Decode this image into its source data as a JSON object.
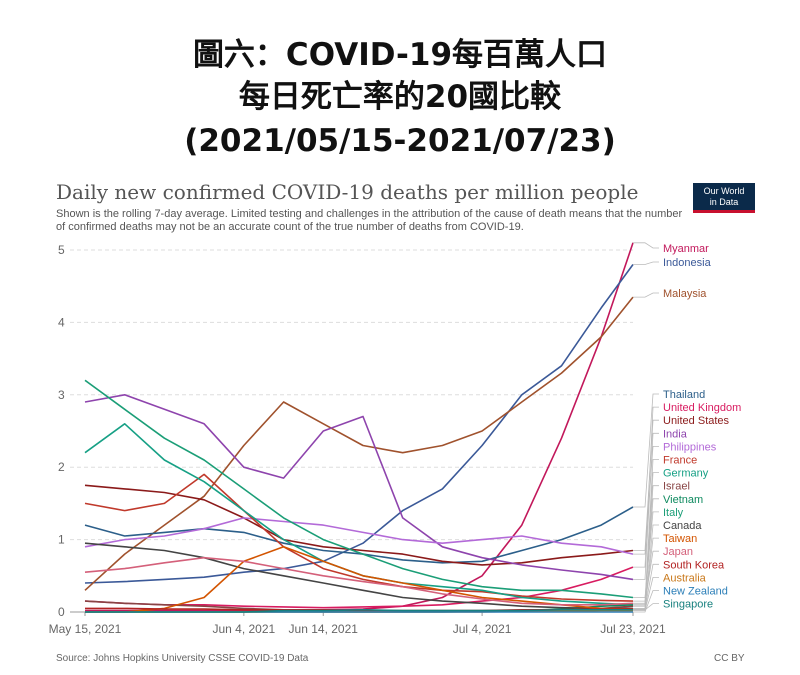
{
  "header": {
    "line1": "圖六：COVID-19每百萬人口",
    "line2": "每日死亡率的20國比較",
    "line3": "(2021/05/15-2021/07/23)"
  },
  "logo": {
    "line1": "Our World",
    "line2": "in Data"
  },
  "footer": {
    "source": "Source: Johns Hopkins University CSSE COVID-19 Data",
    "license": "CC BY"
  },
  "chart_data": {
    "type": "line",
    "title": "Daily new confirmed COVID-19 deaths per million people",
    "subtitle": "Shown is the rolling 7-day average. Limited testing and challenges in the attribution of the cause of death means that the number of confirmed deaths may not be an accurate count of the true number of deaths from COVID-19.",
    "x": [
      0,
      5,
      10,
      15,
      20,
      25,
      30,
      35,
      40,
      45,
      50,
      55,
      60,
      65,
      69
    ],
    "x_tick_labels": [
      "May 15, 2021",
      "Jun 4, 2021",
      "Jun 14, 2021",
      "Jul 4, 2021",
      "Jul 23, 2021"
    ],
    "x_tick_positions": [
      0,
      20,
      30,
      50,
      69
    ],
    "y_ticks": [
      0,
      1,
      2,
      3,
      4,
      5
    ],
    "ylim": [
      0,
      5
    ],
    "grid": "horizontal dashed",
    "legend": "right, labels at line ends",
    "series": [
      {
        "name": "Myanmar",
        "color": "#c2185b",
        "values": [
          0.02,
          0.02,
          0.02,
          0.02,
          0.02,
          0.02,
          0.03,
          0.04,
          0.08,
          0.2,
          0.5,
          1.2,
          2.4,
          3.8,
          5.1
        ]
      },
      {
        "name": "Indonesia",
        "color": "#3b5998",
        "values": [
          0.4,
          0.42,
          0.45,
          0.48,
          0.55,
          0.6,
          0.7,
          0.95,
          1.4,
          1.7,
          2.3,
          3.0,
          3.4,
          4.2,
          4.8
        ]
      },
      {
        "name": "Malaysia",
        "color": "#a0522d",
        "values": [
          0.3,
          0.8,
          1.2,
          1.6,
          2.3,
          2.9,
          2.6,
          2.3,
          2.2,
          2.3,
          2.5,
          2.9,
          3.3,
          3.8,
          4.35
        ]
      },
      {
        "name": "Thailand",
        "color": "#2c5f8a",
        "values": [
          1.2,
          1.05,
          1.1,
          1.15,
          1.1,
          0.95,
          0.85,
          0.8,
          0.72,
          0.68,
          0.7,
          0.85,
          1.0,
          1.2,
          1.45
        ]
      },
      {
        "name": "United Kingdom",
        "color": "#d81b60",
        "values": [
          0.15,
          0.12,
          0.1,
          0.1,
          0.08,
          0.07,
          0.06,
          0.07,
          0.08,
          0.1,
          0.15,
          0.2,
          0.3,
          0.45,
          0.62
        ]
      },
      {
        "name": "United States",
        "color": "#8b1a1a",
        "values": [
          1.75,
          1.7,
          1.65,
          1.55,
          1.3,
          1.0,
          0.9,
          0.85,
          0.8,
          0.7,
          0.65,
          0.68,
          0.75,
          0.8,
          0.85
        ]
      },
      {
        "name": "India",
        "color": "#8e44ad",
        "values": [
          2.9,
          3.0,
          2.8,
          2.6,
          2.0,
          1.85,
          2.5,
          2.7,
          1.3,
          0.9,
          0.75,
          0.65,
          0.58,
          0.52,
          0.45
        ]
      },
      {
        "name": "Philippines",
        "color": "#b36ad8",
        "values": [
          0.9,
          1.0,
          1.05,
          1.15,
          1.3,
          1.25,
          1.2,
          1.1,
          1.0,
          0.95,
          1.0,
          1.05,
          0.95,
          0.9,
          0.8
        ]
      },
      {
        "name": "France",
        "color": "#c0392b",
        "values": [
          1.5,
          1.4,
          1.5,
          1.9,
          1.4,
          0.9,
          0.6,
          0.45,
          0.35,
          0.3,
          0.28,
          0.22,
          0.18,
          0.16,
          0.15
        ]
      },
      {
        "name": "Germany",
        "color": "#16a085",
        "values": [
          2.2,
          2.6,
          2.1,
          1.8,
          1.4,
          1.0,
          0.7,
          0.5,
          0.4,
          0.35,
          0.3,
          0.2,
          0.15,
          0.12,
          0.1
        ]
      },
      {
        "name": "Israel",
        "color": "#884444",
        "values": [
          0.15,
          0.12,
          0.1,
          0.08,
          0.05,
          0.03,
          0.02,
          0.01,
          0.01,
          0.01,
          0.01,
          0.01,
          0.02,
          0.05,
          0.08
        ]
      },
      {
        "name": "Vietnam",
        "color": "#0e8a5f",
        "values": [
          0.0,
          0.0,
          0.0,
          0.0,
          0.0,
          0.0,
          0.0,
          0.0,
          0.0,
          0.0,
          0.01,
          0.02,
          0.04,
          0.08,
          0.1
        ]
      },
      {
        "name": "Italy",
        "color": "#1b9e77",
        "values": [
          3.2,
          2.8,
          2.4,
          2.1,
          1.7,
          1.3,
          1.0,
          0.8,
          0.6,
          0.45,
          0.35,
          0.3,
          0.3,
          0.25,
          0.2
        ]
      },
      {
        "name": "Canada",
        "color": "#444444",
        "values": [
          0.95,
          0.9,
          0.85,
          0.75,
          0.6,
          0.5,
          0.4,
          0.3,
          0.2,
          0.15,
          0.12,
          0.08,
          0.06,
          0.05,
          0.05
        ]
      },
      {
        "name": "Taiwan",
        "color": "#d35400",
        "values": [
          0.0,
          0.0,
          0.05,
          0.2,
          0.7,
          0.9,
          0.7,
          0.5,
          0.4,
          0.3,
          0.2,
          0.15,
          0.1,
          0.05,
          0.04
        ]
      },
      {
        "name": "Japan",
        "color": "#d4607a",
        "values": [
          0.55,
          0.6,
          0.68,
          0.75,
          0.7,
          0.6,
          0.5,
          0.42,
          0.35,
          0.25,
          0.18,
          0.12,
          0.1,
          0.1,
          0.12
        ]
      },
      {
        "name": "South Korea",
        "color": "#b22222",
        "values": [
          0.05,
          0.05,
          0.04,
          0.04,
          0.03,
          0.03,
          0.03,
          0.02,
          0.02,
          0.02,
          0.02,
          0.03,
          0.03,
          0.04,
          0.04
        ]
      },
      {
        "name": "Australia",
        "color": "#c9781a",
        "values": [
          0.0,
          0.0,
          0.0,
          0.0,
          0.0,
          0.0,
          0.0,
          0.0,
          0.0,
          0.0,
          0.0,
          0.01,
          0.01,
          0.02,
          0.02
        ]
      },
      {
        "name": "New Zealand",
        "color": "#2c7fb8",
        "values": [
          0.0,
          0.0,
          0.0,
          0.0,
          0.0,
          0.0,
          0.0,
          0.0,
          0.0,
          0.0,
          0.0,
          0.0,
          0.0,
          0.0,
          0.0
        ]
      },
      {
        "name": "Singapore",
        "color": "#17807e",
        "values": [
          0.0,
          0.0,
          0.0,
          0.0,
          0.0,
          0.02,
          0.02,
          0.03,
          0.02,
          0.02,
          0.02,
          0.02,
          0.03,
          0.03,
          0.03
        ]
      }
    ]
  }
}
